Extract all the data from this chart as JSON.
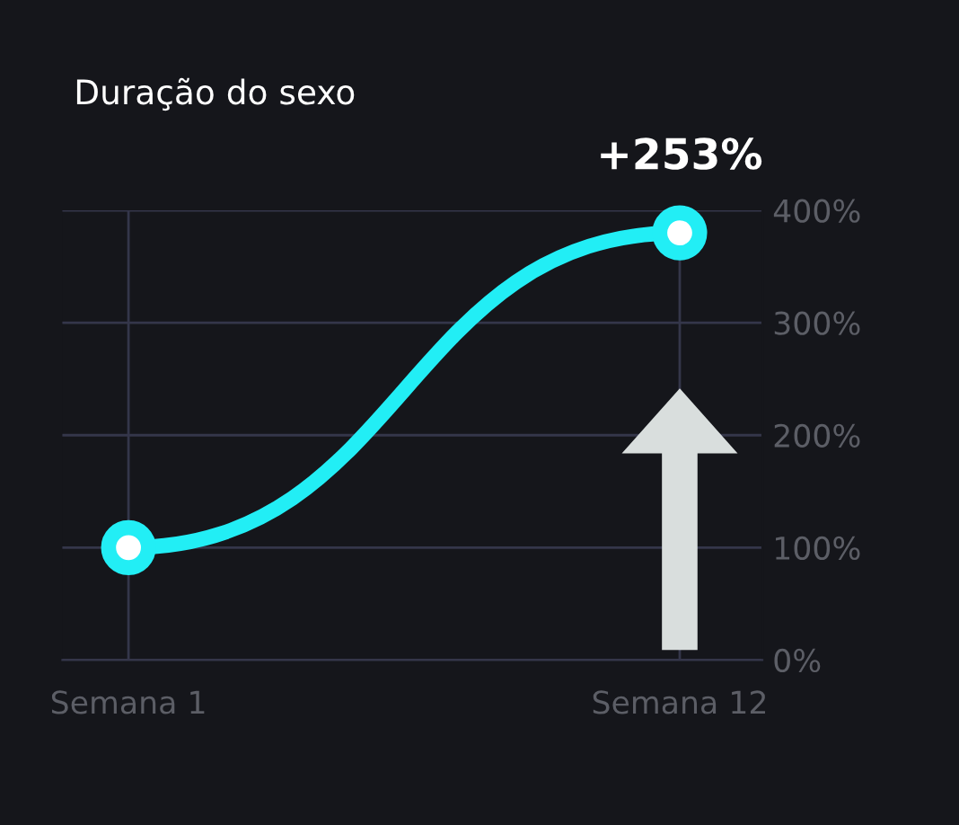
{
  "chart_data": {
    "type": "line",
    "title": "Duração do sexo",
    "categories": [
      "Semana 1",
      "Semana 12"
    ],
    "series": [
      {
        "color": "#22eef5",
        "values": [
          100,
          380
        ]
      }
    ],
    "ylim": [
      0,
      400
    ],
    "yticks": [
      {
        "value": 0,
        "label": "0%"
      },
      {
        "value": 100,
        "label": "100%"
      },
      {
        "value": 200,
        "label": "200%"
      },
      {
        "value": 300,
        "label": "300%"
      },
      {
        "value": 400,
        "label": "400%"
      }
    ],
    "annotations": [
      {
        "text": "+253%",
        "x": "Semana 12",
        "y": 380
      }
    ],
    "marker": "circle",
    "line_style": "solid",
    "grid": true
  }
}
